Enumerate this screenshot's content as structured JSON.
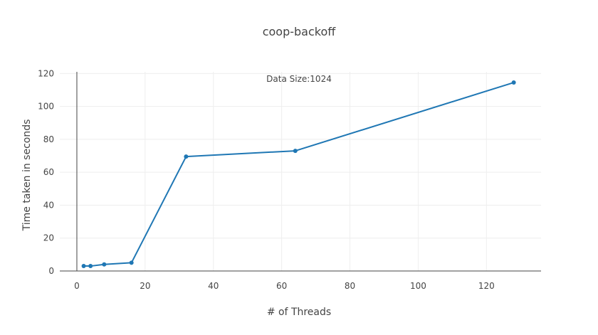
{
  "chart_data": {
    "type": "line",
    "title": "coop-backoff",
    "xlabel": "# of Threads",
    "ylabel": "Time taken in seconds",
    "annotation": "Data Size:1024",
    "xlim": [
      -5,
      136
    ],
    "ylim": [
      0,
      121
    ],
    "xticks": [
      0,
      20,
      40,
      60,
      80,
      100,
      120
    ],
    "yticks": [
      0,
      20,
      40,
      60,
      80,
      100,
      120
    ],
    "grid": true,
    "series": [
      {
        "x": [
          2,
          4,
          8,
          16,
          32,
          64,
          128
        ],
        "y": [
          3,
          3,
          4,
          5,
          69.5,
          73,
          114.5
        ],
        "color": "#1f77b4"
      }
    ]
  }
}
